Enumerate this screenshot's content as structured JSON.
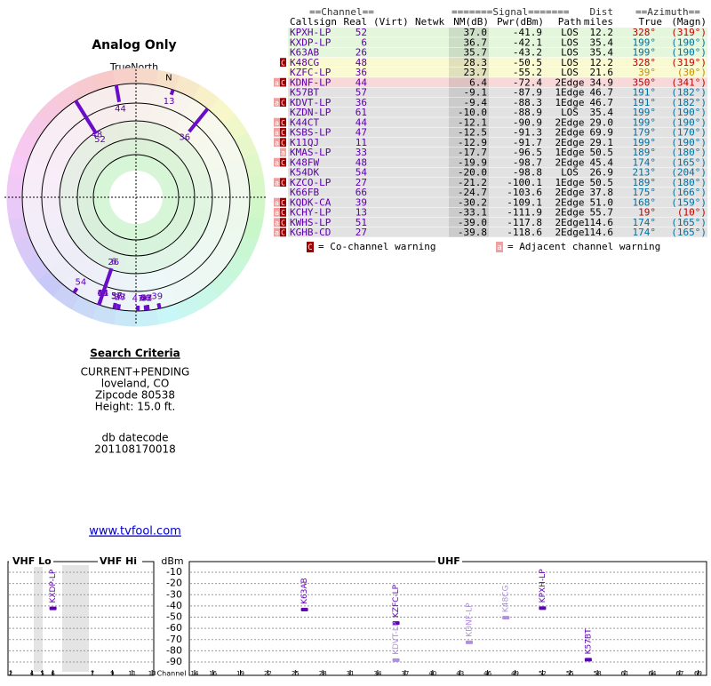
{
  "polar": {
    "title": "Analog Only",
    "north_label": "TrueNorth",
    "north": "N"
  },
  "search": {
    "title": "Search Criteria",
    "lines": [
      "CURRENT+PENDING",
      "loveland, CO",
      "Zipcode 80538",
      "Height: 15.0 ft."
    ],
    "datecode_label": "db datecode",
    "datecode": "201108170018",
    "link": "www.tvfool.com"
  },
  "table": {
    "group_headers": [
      "==Channel==",
      "=======Signal=======",
      "Dist",
      "==Azimuth=="
    ],
    "headers": [
      "Callsign",
      "Real",
      "(Virt)",
      "Netwk",
      "NM(dB)",
      "Pwr(dBm)",
      "Path",
      "miles",
      "True",
      "(Magn)"
    ],
    "rows": [
      {
        "warning": [],
        "callsign": "KPXH-LP",
        "real": "52",
        "nm": "37.0",
        "pwr": "-41.9",
        "path": "LOS",
        "dist": "12.2",
        "az_true": "328°",
        "az_magn": "(319°)",
        "color": "#e4f6dc",
        "az_color": "#c00000"
      },
      {
        "warning": [],
        "callsign": "KXDP-LP",
        "real": "6",
        "nm": "36.7",
        "pwr": "-42.1",
        "path": "LOS",
        "dist": "35.4",
        "az_true": "199°",
        "az_magn": "(190°)",
        "color": "#e4f6dc",
        "az_color": "#0070a0"
      },
      {
        "warning": [],
        "callsign": "K63AB",
        "real": "26",
        "nm": "35.7",
        "pwr": "-43.2",
        "path": "LOS",
        "dist": "35.4",
        "az_true": "199°",
        "az_magn": "(190°)",
        "color": "#e4f6dc",
        "az_color": "#0070a0"
      },
      {
        "warning": [
          "C"
        ],
        "callsign": "K48CG",
        "real": "48",
        "nm": "28.3",
        "pwr": "-50.5",
        "path": "LOS",
        "dist": "12.2",
        "az_true": "328°",
        "az_magn": "(319°)",
        "color": "#fafad2",
        "az_color": "#c00000"
      },
      {
        "warning": [],
        "callsign": "KZFC-LP",
        "real": "36",
        "nm": "23.7",
        "pwr": "-55.2",
        "path": "LOS",
        "dist": "21.6",
        "az_true": "39°",
        "az_magn": "(30°)",
        "color": "#fafad2",
        "az_color": "#c09000"
      },
      {
        "warning": [
          "a",
          "C"
        ],
        "callsign": "KDNF-LP",
        "real": "44",
        "nm": "6.4",
        "pwr": "-72.4",
        "path": "2Edge",
        "dist": "34.9",
        "az_true": "350°",
        "az_magn": "(341°)",
        "color": "#f8d8d8",
        "az_color": "#c00000"
      },
      {
        "warning": [],
        "callsign": "K57BT",
        "real": "57",
        "nm": "-9.1",
        "pwr": "-87.9",
        "path": "1Edge",
        "dist": "46.7",
        "az_true": "191°",
        "az_magn": "(182°)",
        "color": "#e2e2e2",
        "az_color": "#0070a0"
      },
      {
        "warning": [
          "a",
          "C"
        ],
        "callsign": "KDVT-LP",
        "real": "36",
        "nm": "-9.4",
        "pwr": "-88.3",
        "path": "1Edge",
        "dist": "46.7",
        "az_true": "191°",
        "az_magn": "(182°)",
        "color": "#e2e2e2",
        "az_color": "#0070a0"
      },
      {
        "warning": [],
        "callsign": "KZDN-LP",
        "real": "61",
        "nm": "-10.0",
        "pwr": "-88.9",
        "path": "LOS",
        "dist": "35.4",
        "az_true": "199°",
        "az_magn": "(190°)",
        "color": "#e2e2e2",
        "az_color": "#0070a0"
      },
      {
        "warning": [
          "a",
          "C"
        ],
        "callsign": "K44CT",
        "real": "44",
        "nm": "-12.1",
        "pwr": "-90.9",
        "path": "2Edge",
        "dist": "29.0",
        "az_true": "199°",
        "az_magn": "(190°)",
        "color": "#e2e2e2",
        "az_color": "#0070a0"
      },
      {
        "warning": [
          "a",
          "C"
        ],
        "callsign": "KSBS-LP",
        "real": "47",
        "nm": "-12.5",
        "pwr": "-91.3",
        "path": "2Edge",
        "dist": "69.9",
        "az_true": "179°",
        "az_magn": "(170°)",
        "color": "#e2e2e2",
        "az_color": "#0070a0"
      },
      {
        "warning": [
          "a",
          "C"
        ],
        "callsign": "K11QJ",
        "real": "11",
        "nm": "-12.9",
        "pwr": "-91.7",
        "path": "2Edge",
        "dist": "29.1",
        "az_true": "199°",
        "az_magn": "(190°)",
        "color": "#e2e2e2",
        "az_color": "#0070a0"
      },
      {
        "warning": [
          "a"
        ],
        "callsign": "KMAS-LP",
        "real": "33",
        "nm": "-17.7",
        "pwr": "-96.5",
        "path": "1Edge",
        "dist": "50.5",
        "az_true": "189°",
        "az_magn": "(180°)",
        "color": "#e2e2e2",
        "az_color": "#0070a0"
      },
      {
        "warning": [
          "a",
          "C"
        ],
        "callsign": "K48FW",
        "real": "48",
        "nm": "-19.9",
        "pwr": "-98.7",
        "path": "2Edge",
        "dist": "45.4",
        "az_true": "174°",
        "az_magn": "(165°)",
        "color": "#e2e2e2",
        "az_color": "#0070a0"
      },
      {
        "warning": [],
        "callsign": "K54DK",
        "real": "54",
        "nm": "-20.0",
        "pwr": "-98.8",
        "path": "LOS",
        "dist": "26.9",
        "az_true": "213°",
        "az_magn": "(204°)",
        "color": "#e2e2e2",
        "az_color": "#0070a0"
      },
      {
        "warning": [
          "a",
          "C"
        ],
        "callsign": "KZCO-LP",
        "real": "27",
        "nm": "-21.2",
        "pwr": "-100.1",
        "path": "1Edge",
        "dist": "50.5",
        "az_true": "189°",
        "az_magn": "(180°)",
        "color": "#e2e2e2",
        "az_color": "#0070a0"
      },
      {
        "warning": [],
        "callsign": "K66FB",
        "real": "66",
        "nm": "-24.7",
        "pwr": "-103.6",
        "path": "2Edge",
        "dist": "37.8",
        "az_true": "175°",
        "az_magn": "(166°)",
        "color": "#e2e2e2",
        "az_color": "#0070a0"
      },
      {
        "warning": [
          "a",
          "C"
        ],
        "callsign": "KQDK-CA",
        "real": "39",
        "nm": "-30.2",
        "pwr": "-109.1",
        "path": "2Edge",
        "dist": "51.0",
        "az_true": "168°",
        "az_magn": "(159°)",
        "color": "#e2e2e2",
        "az_color": "#0070a0"
      },
      {
        "warning": [
          "a",
          "C"
        ],
        "callsign": "KCHY-LP",
        "real": "13",
        "nm": "-33.1",
        "pwr": "-111.9",
        "path": "2Edge",
        "dist": "55.7",
        "az_true": "19°",
        "az_magn": "(10°)",
        "color": "#e2e2e2",
        "az_color": "#c00000"
      },
      {
        "warning": [
          "a",
          "C"
        ],
        "callsign": "KWHS-LP",
        "real": "51",
        "nm": "-39.0",
        "pwr": "-117.8",
        "path": "2Edge",
        "dist": "114.6",
        "az_true": "174°",
        "az_magn": "(165°)",
        "color": "#e2e2e2",
        "az_color": "#0070a0"
      },
      {
        "warning": [
          "a",
          "C"
        ],
        "callsign": "KGHB-CD",
        "real": "27",
        "nm": "-39.8",
        "pwr": "-118.6",
        "path": "2Edge",
        "dist": "114.6",
        "az_true": "174°",
        "az_magn": "(165°)",
        "color": "#e2e2e2",
        "az_color": "#0070a0"
      }
    ]
  },
  "legend": [
    {
      "icon": "C",
      "text": "= Co-channel warning"
    },
    {
      "icon": "a",
      "text": "= Adjacent channel warning"
    }
  ],
  "chart_data": {
    "type": "spectrum",
    "bands": [
      "VHF Lo",
      "VHF Hi",
      "UHF"
    ],
    "y_label": "dBm",
    "x_label": "Channel",
    "ylim": [
      0,
      -97
    ],
    "yticks": [
      -10,
      -20,
      -30,
      -40,
      -50,
      -60,
      -70,
      -80,
      -90
    ],
    "vhf_xticks": [
      2,
      4,
      5,
      6,
      7,
      9,
      11,
      13
    ],
    "uhf_xticks": [
      14,
      16,
      19,
      22,
      25,
      28,
      31,
      34,
      37,
      40,
      43,
      46,
      49,
      52,
      55,
      58,
      61,
      64,
      67,
      69
    ],
    "grid": true,
    "color": "#6000b8",
    "faded_color": "#b08ee0",
    "points": [
      {
        "label": "KXDP-LP",
        "channel": 6,
        "dbm": -42.1,
        "faded": false
      },
      {
        "label": "K63AB",
        "channel": 26,
        "dbm": -43.2,
        "faded": false
      },
      {
        "label": "KZFC-LP",
        "channel": 36,
        "dbm": -55.2,
        "faded": false
      },
      {
        "label": "KDVT-LP",
        "channel": 36,
        "dbm": -88.3,
        "faded": true
      },
      {
        "label": "KDNF-LP",
        "channel": 44,
        "dbm": -72.4,
        "faded": true
      },
      {
        "label": "K48CG",
        "channel": 48,
        "dbm": -50.5,
        "faded": true
      },
      {
        "label": "KPXH-LP",
        "channel": 52,
        "dbm": -41.9,
        "faded": false
      },
      {
        "label": "K57BT",
        "channel": 57,
        "dbm": -87.9,
        "faded": false
      }
    ]
  }
}
